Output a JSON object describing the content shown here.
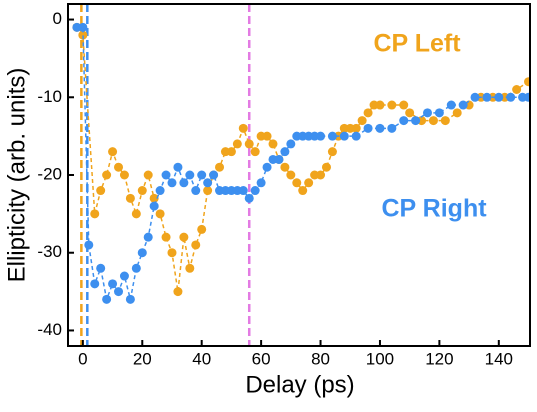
{
  "chart_data": {
    "type": "scatter",
    "xlabel": "Delay (ps)",
    "ylabel": "Ellipticity (arb. units)",
    "xlim": [
      -5,
      150.5
    ],
    "ylim": [
      -42,
      2
    ],
    "xticks": [
      0,
      20,
      40,
      60,
      80,
      100,
      120,
      140
    ],
    "yticks": [
      0,
      -10,
      -20,
      -30,
      -40
    ],
    "vlines": [
      {
        "x": 56,
        "color": "#e37be3"
      },
      {
        "x": 1.5,
        "color": "#3d8fef"
      },
      {
        "x": -0.5,
        "color": "#f0a41c"
      }
    ],
    "series": [
      {
        "name": "CP Left",
        "color": "#f0a41c",
        "x": [
          -2,
          0,
          4,
          6,
          8,
          10,
          12,
          14,
          16,
          18,
          20,
          22,
          24,
          26,
          28,
          30,
          32,
          34,
          36,
          38,
          40,
          42,
          44,
          46,
          48,
          50,
          52,
          54,
          56,
          58,
          60,
          62,
          64,
          66,
          68,
          70,
          72,
          74,
          76,
          78,
          80,
          82,
          84,
          86,
          88,
          90,
          92,
          94,
          96,
          98,
          100,
          104,
          108,
          110,
          114,
          118,
          122,
          126,
          130,
          134,
          138,
          142,
          146,
          150
        ],
        "values": [
          -1,
          -2,
          -25,
          -22,
          -20,
          -17,
          -19,
          -20,
          -23,
          -25,
          -22,
          -20,
          -23,
          -25,
          -28,
          -30,
          -35,
          -28,
          -32,
          -29,
          -27,
          -22,
          -20,
          -19,
          -17,
          -17,
          -16,
          -14,
          -16,
          -17,
          -15,
          -15,
          -16,
          -18,
          -19,
          -20,
          -21,
          -22,
          -21,
          -20,
          -20,
          -19,
          -17,
          -15,
          -14,
          -14,
          -14,
          -13,
          -12,
          -11,
          -11,
          -11,
          -11,
          -12,
          -13,
          -13,
          -13,
          -12,
          -11,
          -10,
          -10,
          -10,
          -9,
          -8
        ]
      },
      {
        "name": "CP Right",
        "color": "#3d8fef",
        "x": [
          -2,
          0,
          2,
          4,
          6,
          8,
          10,
          12,
          14,
          16,
          18,
          20,
          22,
          24,
          26,
          28,
          30,
          32,
          34,
          36,
          38,
          40,
          42,
          44,
          46,
          48,
          50,
          52,
          54,
          56,
          58,
          60,
          62,
          64,
          66,
          68,
          70,
          72,
          74,
          76,
          78,
          80,
          84,
          88,
          92,
          96,
          100,
          104,
          108,
          112,
          116,
          120,
          124,
          128,
          132,
          136,
          140,
          144,
          148,
          150
        ],
        "values": [
          -1,
          -1,
          -29,
          -34,
          -32,
          -36,
          -34,
          -35,
          -33,
          -36,
          -32,
          -30,
          -28,
          -24,
          -22,
          -20,
          -21,
          -19,
          -21,
          -20,
          -22,
          -20,
          -21,
          -20,
          -22,
          -22,
          -22,
          -22,
          -22,
          -23,
          -22,
          -21,
          -19,
          -18,
          -18,
          -17,
          -16,
          -15,
          -15,
          -15,
          -15,
          -15,
          -15,
          -15,
          -15,
          -14,
          -14,
          -14,
          -13,
          -13,
          -12,
          -12,
          -11,
          -11,
          -10,
          -10,
          -10,
          -10,
          -10,
          -10
        ]
      }
    ]
  }
}
